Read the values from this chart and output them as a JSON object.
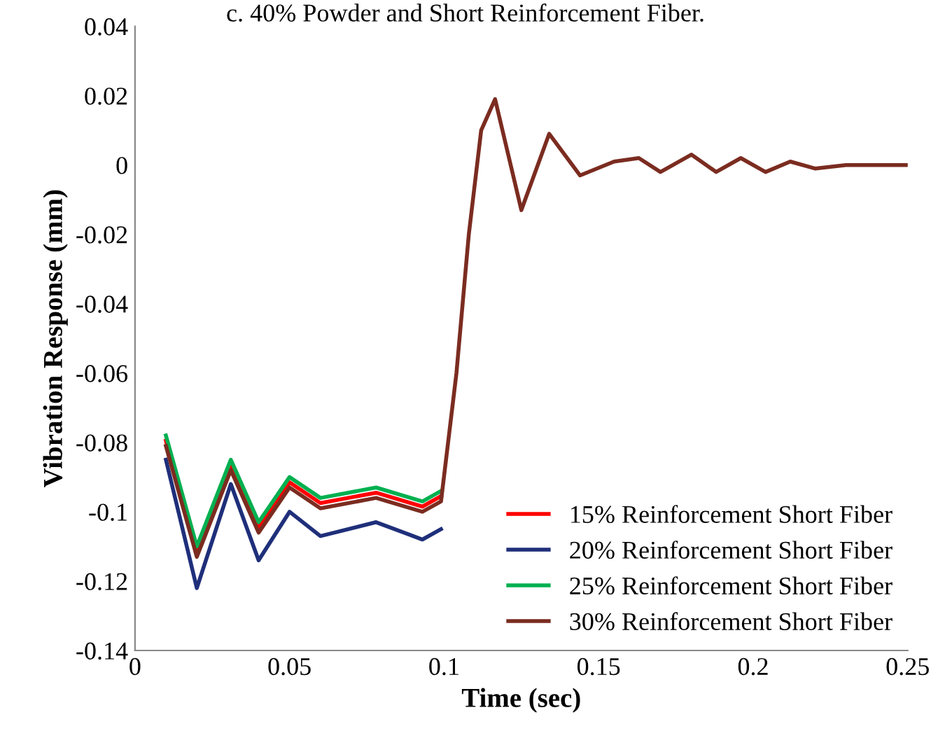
{
  "chart_data": {
    "type": "line",
    "title": "c. 40% Powder and Short Reinforcement Fiber.",
    "xlabel": "Time (sec)",
    "ylabel": "Vibration Response (mm)",
    "x": [
      0.01,
      0.02,
      0.031,
      0.04,
      0.05,
      0.06,
      0.078,
      0.093,
      0.099,
      0.104,
      0.108,
      0.112,
      0.1165,
      0.125,
      0.134,
      0.144,
      0.155,
      0.163,
      0.17,
      0.18,
      0.188,
      0.196,
      0.204,
      0.212,
      0.22,
      0.23,
      0.25
    ],
    "series": [
      {
        "name": "15% Reinforcement Short Fiber",
        "color": "#ff0000",
        "values": [
          -0.0795,
          -0.1115,
          -0.0865,
          -0.1045,
          -0.0915,
          -0.0975,
          -0.0945,
          -0.0985,
          -0.0955,
          null,
          null,
          null,
          null,
          null,
          null,
          null,
          null,
          null,
          null,
          null,
          null,
          null,
          null,
          null,
          null,
          null,
          null
        ]
      },
      {
        "name": "20% Reinforcement Short Fiber",
        "color": "#1f2f7a",
        "values": [
          -0.085,
          -0.122,
          -0.092,
          -0.114,
          -0.1,
          -0.107,
          -0.103,
          -0.108,
          -0.105,
          null,
          null,
          null,
          null,
          null,
          null,
          null,
          null,
          null,
          null,
          null,
          null,
          null,
          null,
          null,
          null,
          null,
          null
        ]
      },
      {
        "name": "25% Reinforcement Short Fiber",
        "color": "#00b050",
        "values": [
          -0.078,
          -0.11,
          -0.085,
          -0.103,
          -0.09,
          -0.096,
          -0.093,
          -0.097,
          -0.094,
          null,
          null,
          null,
          null,
          null,
          null,
          null,
          null,
          null,
          null,
          null,
          null,
          null,
          null,
          null,
          null,
          null,
          null
        ]
      },
      {
        "name": "30% Reinforcement Short Fiber",
        "color": "#7b2c20",
        "values": [
          -0.081,
          -0.113,
          -0.088,
          -0.106,
          -0.093,
          -0.099,
          -0.096,
          -0.1,
          -0.097,
          -0.06,
          -0.02,
          0.01,
          0.019,
          -0.013,
          0.009,
          -0.003,
          0.001,
          0.002,
          -0.002,
          0.003,
          -0.002,
          0.002,
          -0.002,
          0.001,
          -0.001,
          0,
          0
        ]
      }
    ],
    "xlim": [
      0,
      0.25
    ],
    "xticks": [
      0,
      0.05,
      0.1,
      0.15,
      0.2,
      0.25
    ],
    "ylim": [
      -0.14,
      0.04
    ],
    "yticks": [
      {
        "value": -0.14,
        "label": "-0.14"
      },
      {
        "value": -0.12,
        "label": "-0.12"
      },
      {
        "value": -0.1,
        "label": "-0.1"
      },
      {
        "value": -0.08,
        "label": "-0.08"
      },
      {
        "value": -0.06,
        "label": "-0.06"
      },
      {
        "value": -0.04,
        "label": "-0.04"
      },
      {
        "value": -0.02,
        "label": "-0.02"
      },
      0,
      0.02,
      0.04
    ],
    "grid": false,
    "legend": "bottom right",
    "marker": "none",
    "line_style": "solid"
  }
}
